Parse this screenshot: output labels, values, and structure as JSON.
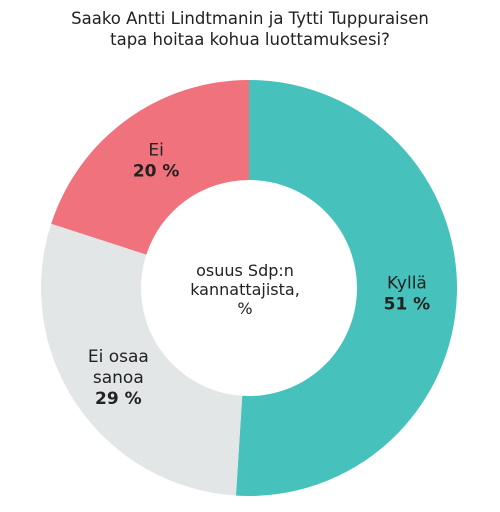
{
  "title": {
    "line1": "Saako Antti Lindtmanin ja Tytti Tuppuraisen",
    "line2": "tapa hoitaa kohua luottamuksesi?"
  },
  "center": {
    "line1": "osuus Sdp:n",
    "line2": "kannattajista,",
    "line3": "%"
  },
  "chart_data": {
    "type": "pie",
    "style": "donut",
    "start": "12 o'clock, clockwise",
    "slices": [
      {
        "label": "Kyllä",
        "label_lines": [
          "Kyllä"
        ],
        "value": 51,
        "value_label": "51 %",
        "color": "#47c1bc"
      },
      {
        "label": "Ei osaa sanoa",
        "label_lines": [
          "Ei osaa",
          "sanoa"
        ],
        "value": 29,
        "value_label": "29 %",
        "color": "#e3e6e6"
      },
      {
        "label": "Ei",
        "label_lines": [
          "Ei"
        ],
        "value": 20,
        "value_label": "20 %",
        "color": "#f0727c"
      }
    ]
  }
}
